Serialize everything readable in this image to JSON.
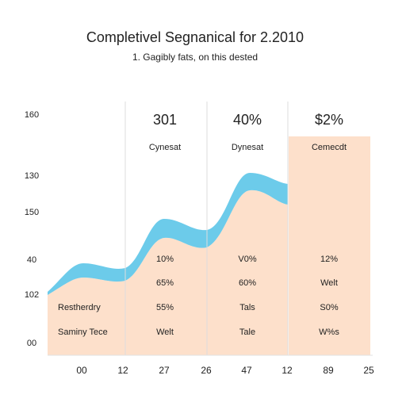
{
  "header": {
    "title": "Completivel Segnanical for 2.2010",
    "subtitle": "1. Gagibly fats, on this dested"
  },
  "y_labels": [
    "160",
    "130",
    "150",
    "40",
    "102",
    "00"
  ],
  "x_labels": [
    "00",
    "12",
    "27",
    "26",
    "47",
    "12",
    "89",
    "25"
  ],
  "columns": [
    {
      "value": "301",
      "label": "Cynesat",
      "rows": [
        "10%",
        "65%",
        "55%",
        "Welt"
      ]
    },
    {
      "value": "40%",
      "label": "Dynesat",
      "rows": [
        "V0%",
        "60%",
        "Tals",
        "Tale"
      ]
    },
    {
      "value": "$2%",
      "label": "Cemecdt",
      "rows": [
        "12%",
        "Welt",
        "S0%",
        "W%s"
      ]
    }
  ],
  "left_rows": [
    "Restherdry",
    "Saminy Tece"
  ]
}
